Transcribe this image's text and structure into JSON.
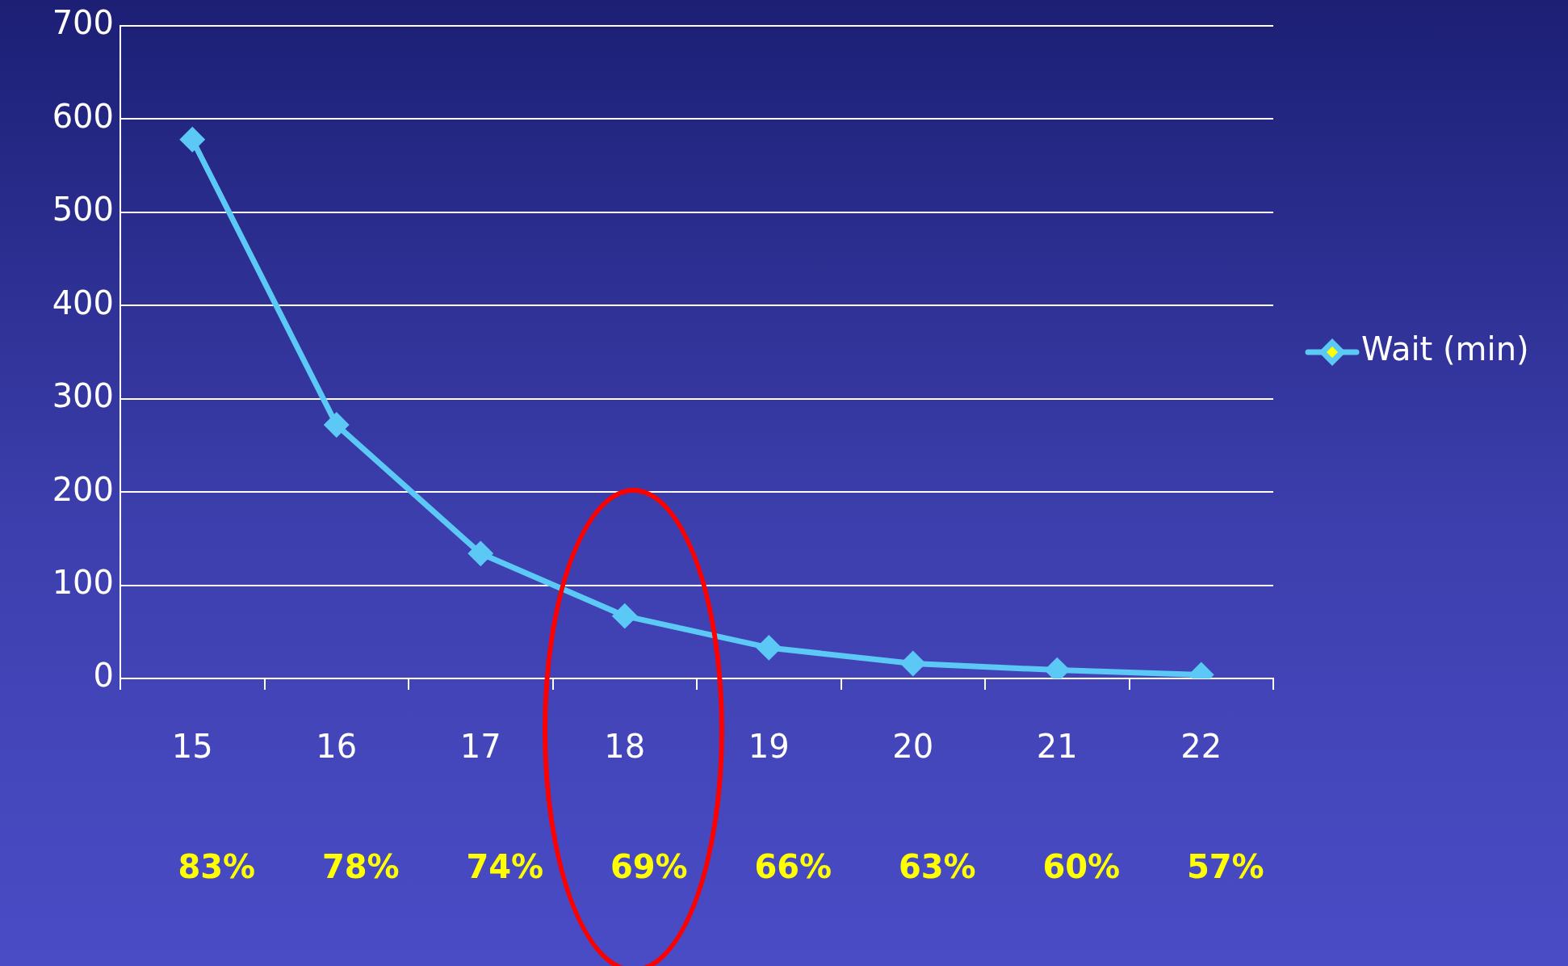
{
  "chart_data": {
    "type": "line",
    "categories": [
      "15",
      "16",
      "17",
      "18",
      "19",
      "20",
      "21",
      "22"
    ],
    "series": [
      {
        "name": "Wait (min)",
        "color": "#5bc8f5",
        "values": [
          578,
          272,
          134,
          67,
          33,
          16,
          9,
          4
        ]
      }
    ],
    "ylim": [
      0,
      700
    ],
    "yticks": [
      0,
      100,
      200,
      300,
      400,
      500,
      600,
      700
    ],
    "grid": "y",
    "legend": "right",
    "marker": "diamond",
    "line_style": "solid",
    "annotations": [
      "83%",
      "78%",
      "74%",
      "69%",
      "66%",
      "63%",
      "60%",
      "57%"
    ]
  }
}
